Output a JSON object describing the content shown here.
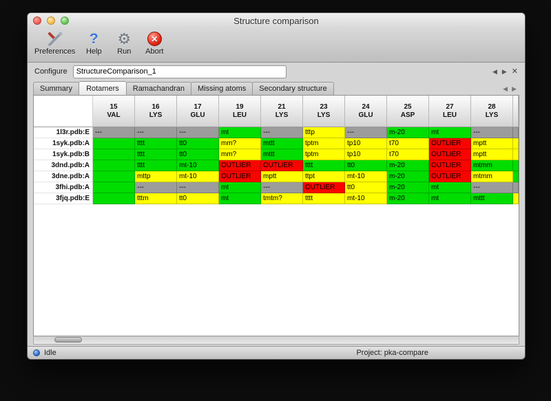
{
  "window": {
    "title": "Structure comparison"
  },
  "toolbar": {
    "items": [
      {
        "label": "Preferences",
        "icon": "tools-icon"
      },
      {
        "label": "Help",
        "icon": "help-icon"
      },
      {
        "label": "Run",
        "icon": "gear-icon"
      },
      {
        "label": "Abort",
        "icon": "abort-icon"
      }
    ]
  },
  "configure": {
    "label": "Configure",
    "value": "StructureComparison_1"
  },
  "glyphs": {
    "prev": "◀",
    "next": "▶",
    "close": "✕",
    "help": "?",
    "gear": "⚙",
    "abort_x": "✕"
  },
  "tabs": [
    {
      "label": "Summary",
      "active": false
    },
    {
      "label": "Rotamers",
      "active": true
    },
    {
      "label": "Ramachandran",
      "active": false
    },
    {
      "label": "Missing atoms",
      "active": false
    },
    {
      "label": "Secondary structure",
      "active": false
    }
  ],
  "table": {
    "columns": [
      {
        "number": "15",
        "residue": "VAL"
      },
      {
        "number": "16",
        "residue": "LYS"
      },
      {
        "number": "17",
        "residue": "GLU"
      },
      {
        "number": "19",
        "residue": "LEU"
      },
      {
        "number": "21",
        "residue": "LYS"
      },
      {
        "number": "23",
        "residue": "LYS"
      },
      {
        "number": "24",
        "residue": "GLU"
      },
      {
        "number": "25",
        "residue": "ASP"
      },
      {
        "number": "27",
        "residue": "LEU"
      },
      {
        "number": "28",
        "residue": "LYS"
      }
    ],
    "rows": [
      {
        "name": "1l3r.pdb:E",
        "sliver": "none",
        "cells": [
          {
            "text": "---",
            "status": "none"
          },
          {
            "text": "---",
            "status": "none"
          },
          {
            "text": "---",
            "status": "none"
          },
          {
            "text": "mt",
            "status": "ok"
          },
          {
            "text": "---",
            "status": "none"
          },
          {
            "text": "tttp",
            "status": "warn"
          },
          {
            "text": "---",
            "status": "none"
          },
          {
            "text": "m-20",
            "status": "ok"
          },
          {
            "text": "mt",
            "status": "ok"
          },
          {
            "text": "---",
            "status": "none"
          }
        ]
      },
      {
        "name": "1syk.pdb:A",
        "sliver": "warn",
        "cells": [
          {
            "text": "",
            "status": "ok"
          },
          {
            "text": "tttt",
            "status": "ok"
          },
          {
            "text": "tt0",
            "status": "ok"
          },
          {
            "text": "mm?",
            "status": "warn"
          },
          {
            "text": "mttt",
            "status": "ok"
          },
          {
            "text": "tptm",
            "status": "warn"
          },
          {
            "text": "tp10",
            "status": "warn"
          },
          {
            "text": "t70",
            "status": "warn"
          },
          {
            "text": "OUTLIER",
            "status": "outlier"
          },
          {
            "text": "mptt",
            "status": "warn"
          }
        ]
      },
      {
        "name": "1syk.pdb:B",
        "sliver": "warn",
        "cells": [
          {
            "text": "",
            "status": "ok"
          },
          {
            "text": "tttt",
            "status": "ok"
          },
          {
            "text": "tt0",
            "status": "ok"
          },
          {
            "text": "mm?",
            "status": "warn"
          },
          {
            "text": "mttt",
            "status": "ok"
          },
          {
            "text": "tptm",
            "status": "warn"
          },
          {
            "text": "tp10",
            "status": "warn"
          },
          {
            "text": "t70",
            "status": "warn"
          },
          {
            "text": "OUTLIER",
            "status": "outlier"
          },
          {
            "text": "mptt",
            "status": "warn"
          }
        ]
      },
      {
        "name": "3dnd.pdb:A",
        "sliver": "ok",
        "cells": [
          {
            "text": "",
            "status": "ok"
          },
          {
            "text": "tttt",
            "status": "ok"
          },
          {
            "text": "mt-10",
            "status": "ok"
          },
          {
            "text": "OUTLIER",
            "status": "outlier"
          },
          {
            "text": "OUTLIER",
            "status": "outlier"
          },
          {
            "text": "tttt",
            "status": "ok"
          },
          {
            "text": "tt0",
            "status": "ok"
          },
          {
            "text": "m-20",
            "status": "ok"
          },
          {
            "text": "OUTLIER",
            "status": "outlier"
          },
          {
            "text": "mtmm",
            "status": "ok"
          }
        ]
      },
      {
        "name": "3dne.pdb:A",
        "sliver": "ok",
        "cells": [
          {
            "text": "",
            "status": "ok"
          },
          {
            "text": "mttp",
            "status": "warn"
          },
          {
            "text": "mt-10",
            "status": "warn"
          },
          {
            "text": "OUTLIER",
            "status": "outlier"
          },
          {
            "text": "mptt",
            "status": "warn"
          },
          {
            "text": "ttpt",
            "status": "warn"
          },
          {
            "text": "mt-10",
            "status": "warn"
          },
          {
            "text": "m-20",
            "status": "ok"
          },
          {
            "text": "OUTLIER",
            "status": "outlier"
          },
          {
            "text": "mtmm",
            "status": "warn"
          }
        ]
      },
      {
        "name": "3fhi.pdb:A",
        "sliver": "none",
        "cells": [
          {
            "text": "",
            "status": "ok"
          },
          {
            "text": "---",
            "status": "none"
          },
          {
            "text": "---",
            "status": "none"
          },
          {
            "text": "mt",
            "status": "ok"
          },
          {
            "text": "---",
            "status": "none"
          },
          {
            "text": "OUTLIER",
            "status": "outlier"
          },
          {
            "text": "tt0",
            "status": "warn"
          },
          {
            "text": "m-20",
            "status": "ok"
          },
          {
            "text": "mt",
            "status": "ok"
          },
          {
            "text": "---",
            "status": "none"
          }
        ]
      },
      {
        "name": "3fjq.pdb:E",
        "sliver": "warn",
        "cells": [
          {
            "text": "",
            "status": "ok"
          },
          {
            "text": "tttm",
            "status": "warn"
          },
          {
            "text": "tt0",
            "status": "warn"
          },
          {
            "text": "mt",
            "status": "ok"
          },
          {
            "text": "tmtm?",
            "status": "warn"
          },
          {
            "text": "tttt",
            "status": "warn"
          },
          {
            "text": "mt-10",
            "status": "warn"
          },
          {
            "text": "m-20",
            "status": "ok"
          },
          {
            "text": "mt",
            "status": "ok"
          },
          {
            "text": "mttt",
            "status": "ok"
          }
        ]
      }
    ]
  },
  "status_bar": {
    "left": "Idle",
    "right": "Project: pka-compare"
  },
  "colors": {
    "ok": "#00dd00",
    "warn": "#ffff00",
    "outlier": "#f90400",
    "none": "#9c9c9c",
    "status_dot": "#2a69c8"
  }
}
